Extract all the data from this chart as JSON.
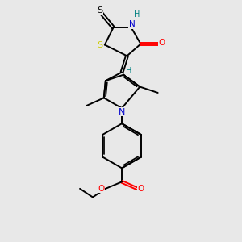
{
  "background_color": "#e8e8e8",
  "figsize": [
    3.0,
    3.0
  ],
  "dpi": 100,
  "bond_color": "#000000",
  "bond_lw": 1.4,
  "S_yellow_color": "#cccc00",
  "S_black_color": "#000000",
  "N_color": "#0000cd",
  "O_color": "#ff0000",
  "H_color": "#008080",
  "xlim": [
    0,
    10
  ],
  "ylim": [
    0,
    14
  ]
}
